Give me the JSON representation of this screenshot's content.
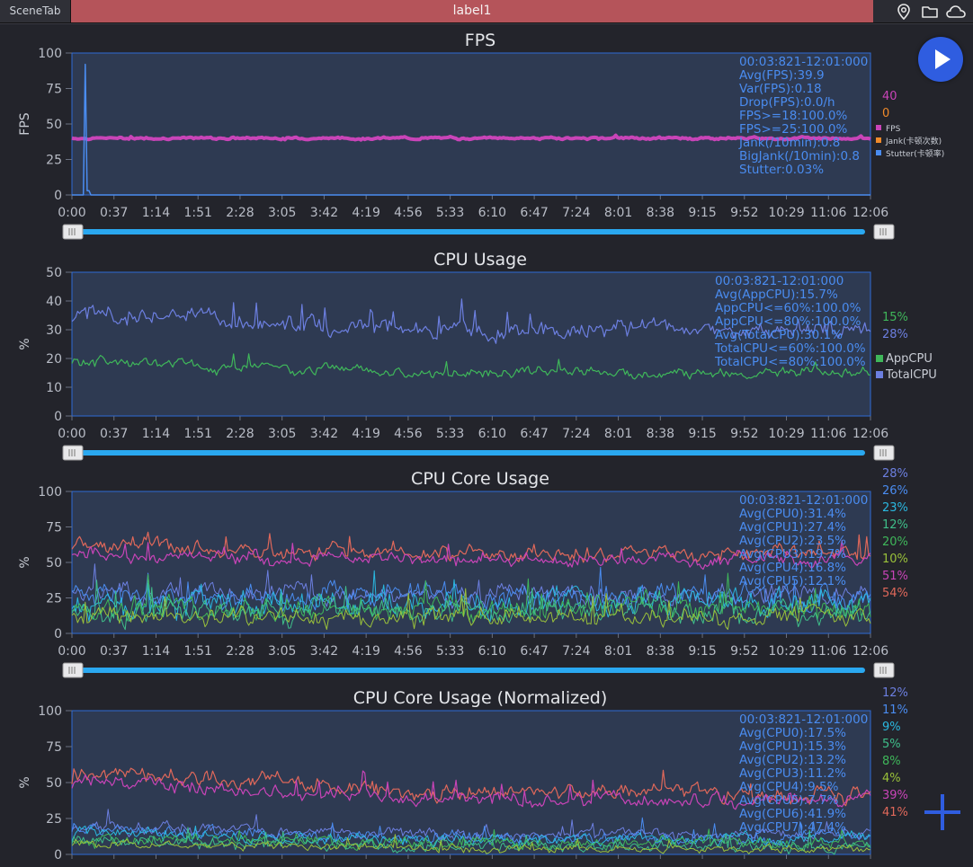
{
  "tabs": {
    "scene_tab": "SceneTab",
    "active_label": "label1"
  },
  "time_ticks": [
    "0:00",
    "0:37",
    "1:14",
    "1:51",
    "2:28",
    "3:05",
    "3:42",
    "4:19",
    "4:56",
    "5:33",
    "6:10",
    "6:47",
    "7:24",
    "8:01",
    "8:38",
    "9:15",
    "9:52",
    "10:29",
    "11:06",
    "12:06"
  ],
  "colors": {
    "accent": "#2f5de0",
    "plot_bg": "#2e3a52",
    "plot_border": "#2f6bd6",
    "stat_text": "#4a8cf0",
    "slider": "#2aa8f0"
  },
  "chart_data": [
    {
      "type": "line",
      "title": "FPS",
      "ylabel": "FPS",
      "ylim": [
        0,
        100
      ],
      "yticks": [
        "0",
        "25",
        "50",
        "75",
        "100"
      ],
      "stats": [
        "00:03:821-12:01:000",
        "Avg(FPS):39.9",
        "Var(FPS):0.18",
        "Drop(FPS):0.0/h",
        "FPS>=18:100.0%",
        "FPS>=25:100.0%",
        "Jank(/10min):0.8",
        "BigJank(/10min):0.8",
        "Stutter:0.03%"
      ],
      "current_values": [
        {
          "text": "40",
          "color": "#c944b8"
        },
        {
          "text": "0",
          "color": "#f08a2a"
        }
      ],
      "legend": [
        {
          "label": "FPS",
          "color": "#c944b8"
        },
        {
          "label": "Jank(卡顿次数)",
          "color": "#f08a2a"
        },
        {
          "label": "Stutter(卡顿率)",
          "color": "#4a8cf0"
        }
      ],
      "series": [
        {
          "name": "FPS",
          "color": "#c944b8",
          "width": 4,
          "mean": 40,
          "noise": 0.6,
          "spikes": [],
          "start": 40
        },
        {
          "name": "Stutter",
          "color": "#4a8cf0",
          "width": 1.5,
          "mean": 0,
          "noise": 0,
          "spikes": [
            [
              0.018,
              92
            ],
            [
              0.02,
              3
            ]
          ],
          "start": 0
        }
      ]
    },
    {
      "type": "line",
      "title": "CPU Usage",
      "ylabel": "%",
      "ylim": [
        0,
        50
      ],
      "yticks": [
        "0",
        "10",
        "20",
        "30",
        "40",
        "50"
      ],
      "stats": [
        "00:03:821-12:01:000",
        "Avg(AppCPU):15.7%",
        "AppCPU<=60%:100.0%",
        "AppCPU<=80%:100.0%",
        "Avg(TotalCPU):30.1%",
        "TotalCPU<=60%:100.0%",
        "TotalCPU<=80%:100.0%"
      ],
      "current_values": [
        {
          "text": "15%",
          "color": "#3fb75a"
        },
        {
          "text": "28%",
          "color": "#6c7fe0"
        }
      ],
      "legend": [
        {
          "label": "AppCPU",
          "color": "#3fb75a"
        },
        {
          "label": "TotalCPU",
          "color": "#6c7fe0"
        }
      ],
      "series": [
        {
          "name": "TotalCPU",
          "color": "#6c7fe0",
          "width": 1.2,
          "mean": 30,
          "noise": 2.2,
          "early": 36,
          "start": 33
        },
        {
          "name": "AppCPU",
          "color": "#3fb75a",
          "width": 1.2,
          "mean": 15,
          "noise": 1.3,
          "early": 19,
          "start": 18
        }
      ]
    },
    {
      "type": "line",
      "title": "CPU Core Usage",
      "ylabel": "%",
      "ylim": [
        0,
        100
      ],
      "yticks": [
        "0",
        "25",
        "50",
        "75",
        "100"
      ],
      "stats": [
        "00:03:821-12:01:000",
        "Avg(CPU0):31.4%",
        "Avg(CPU1):27.4%",
        "Avg(CPU2):23.5%",
        "Avg(CPU3):19.7%",
        "Avg(CPU4):16.8%",
        "Avg(CPU5):12.1%"
      ],
      "current_values": [
        {
          "text": "28%",
          "color": "#6c7fe0"
        },
        {
          "text": "26%",
          "color": "#4a8cf0"
        },
        {
          "text": "23%",
          "color": "#2ab8e0"
        },
        {
          "text": "12%",
          "color": "#3fbf8a"
        },
        {
          "text": "20%",
          "color": "#3fb75a"
        },
        {
          "text": "10%",
          "color": "#9ac13a"
        },
        {
          "text": "51%",
          "color": "#c944b8"
        },
        {
          "text": "54%",
          "color": "#e0685a"
        }
      ],
      "legend": [],
      "series": [
        {
          "name": "CPU7",
          "color": "#e0685a",
          "width": 1.2,
          "mean": 56,
          "noise": 4,
          "early": 62,
          "start": 60
        },
        {
          "name": "CPU6",
          "color": "#c944b8",
          "width": 1.2,
          "mean": 52,
          "noise": 3.5,
          "early": 56,
          "start": 55
        },
        {
          "name": "CPU0",
          "color": "#6c7fe0",
          "width": 1,
          "mean": 28,
          "noise": 5,
          "start": 28
        },
        {
          "name": "CPU1",
          "color": "#4a8cf0",
          "width": 1,
          "mean": 26,
          "noise": 6,
          "start": 26
        },
        {
          "name": "CPU2",
          "color": "#2ab8e0",
          "width": 1,
          "mean": 22,
          "noise": 7,
          "start": 22
        },
        {
          "name": "CPU4",
          "color": "#3fb75a",
          "width": 1,
          "mean": 18,
          "noise": 6,
          "start": 18
        },
        {
          "name": "CPU3",
          "color": "#3fbf8a",
          "width": 1,
          "mean": 15,
          "noise": 6,
          "start": 15
        },
        {
          "name": "CPU5",
          "color": "#9ac13a",
          "width": 1,
          "mean": 12,
          "noise": 5,
          "start": 12
        }
      ]
    },
    {
      "type": "line",
      "title": "CPU Core Usage (Normalized)",
      "ylabel": "%",
      "ylim": [
        0,
        100
      ],
      "yticks": [
        "0",
        "25",
        "50",
        "75",
        "100"
      ],
      "stats": [
        "00:03:821-12:01:000",
        "Avg(CPU0):17.5%",
        "Avg(CPU1):15.3%",
        "Avg(CPU2):13.2%",
        "Avg(CPU3):11.2%",
        "Avg(CPU4):9.5%",
        "Avg(CPU5):7.7%",
        "Avg(CPU6):41.9%",
        "Avg(CPU7):47.4%"
      ],
      "current_values": [
        {
          "text": "12%",
          "color": "#6c7fe0"
        },
        {
          "text": "11%",
          "color": "#4a8cf0"
        },
        {
          "text": "9%",
          "color": "#2ab8e0"
        },
        {
          "text": "5%",
          "color": "#3fbf8a"
        },
        {
          "text": "8%",
          "color": "#3fb75a"
        },
        {
          "text": "4%",
          "color": "#9ac13a"
        },
        {
          "text": "39%",
          "color": "#c944b8"
        },
        {
          "text": "41%",
          "color": "#e0685a"
        }
      ],
      "legend": [],
      "series": [
        {
          "name": "CPU7",
          "color": "#e0685a",
          "width": 1.2,
          "mean": 42,
          "noise": 4,
          "early": 58,
          "start": 50
        },
        {
          "name": "CPU6",
          "color": "#c944b8",
          "width": 1.2,
          "mean": 38,
          "noise": 3.5,
          "early": 52,
          "start": 46
        },
        {
          "name": "CPU0",
          "color": "#6c7fe0",
          "width": 1,
          "mean": 14,
          "noise": 3,
          "early": 20,
          "start": 16
        },
        {
          "name": "CPU1",
          "color": "#4a8cf0",
          "width": 1,
          "mean": 12,
          "noise": 3,
          "early": 18,
          "start": 14
        },
        {
          "name": "CPU2",
          "color": "#2ab8e0",
          "width": 1,
          "mean": 10,
          "noise": 3,
          "early": 15,
          "start": 12
        },
        {
          "name": "CPU4",
          "color": "#3fb75a",
          "width": 1,
          "mean": 8,
          "noise": 3,
          "early": 12,
          "start": 10
        },
        {
          "name": "CPU3",
          "color": "#3fbf8a",
          "width": 1,
          "mean": 6,
          "noise": 3,
          "early": 10,
          "start": 8
        },
        {
          "name": "CPU5",
          "color": "#9ac13a",
          "width": 1,
          "mean": 4,
          "noise": 2,
          "early": 8,
          "start": 6
        }
      ]
    }
  ]
}
